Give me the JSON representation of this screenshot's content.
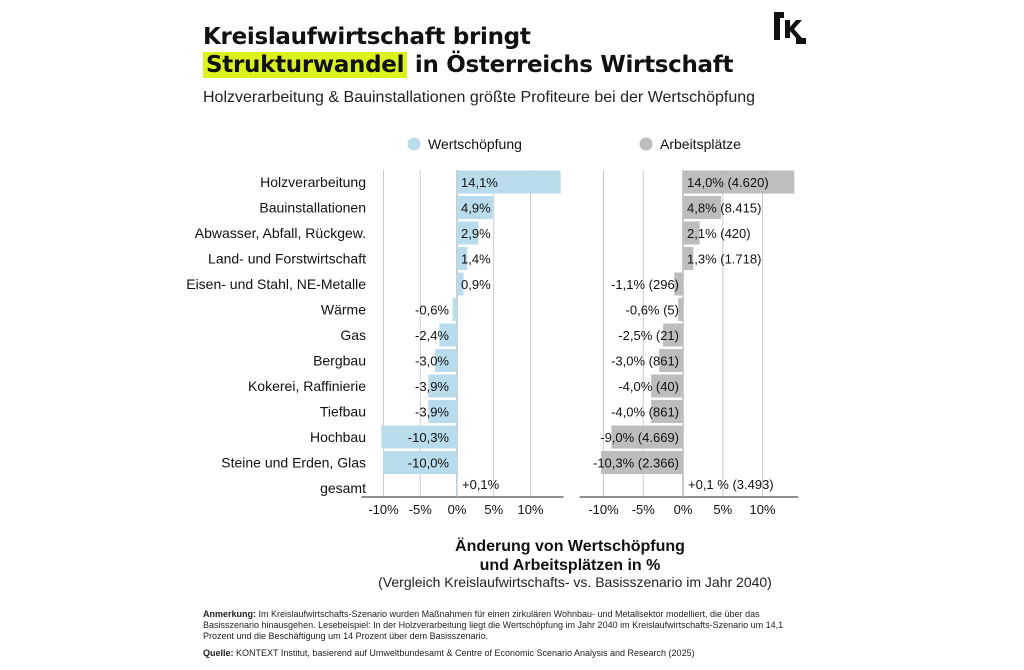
{
  "header": {
    "title_line1": "Kreislaufwirtschaft bringt",
    "title_highlight": "Strukturwandel",
    "title_line2_rest": " in Österreichs Wirtschaft",
    "subtitle": "Holzverarbeitung & Bauinstallationen größte Profiteure bei der Wertschöpfung",
    "logo_icon": "kontext-logo-icon"
  },
  "colors": {
    "wertschoepfung": "#b9dcec",
    "arbeitsplaetze": "#bdbdbd",
    "highlight": "#dcf21e",
    "grid": "#cccccc"
  },
  "chart_data": [
    {
      "type": "bar",
      "orientation": "horizontal",
      "legend": "Wertschöpfung",
      "categories": [
        "Holzverarbeitung",
        "Bauinstallationen",
        "Abwasser, Abfall, Rückgew.",
        "Land- und Forstwirtschaft",
        "Eisen- und Stahl, NE-Metalle",
        "Wärme",
        "Gas",
        "Bergbau",
        "Kokerei, Raffinierie",
        "Tiefbau",
        "Hochbau",
        "Steine und Erden, Glas",
        "gesamt"
      ],
      "values": [
        14.1,
        4.9,
        2.9,
        1.4,
        0.9,
        -0.6,
        -2.4,
        -3.0,
        -3.9,
        -3.9,
        -10.3,
        -10.0,
        0.1
      ],
      "labels": [
        "14,1%",
        "4,9%",
        "2,9%",
        "1,4%",
        "0,9%",
        "-0,6%",
        "-2,4%",
        "-3,0%",
        "-3,9%",
        "-3,9%",
        "-10,3%",
        "-10,0%",
        "+0,1%"
      ],
      "xticks": [
        "-10%",
        "-5%",
        "0%",
        "5%",
        "10%"
      ],
      "xtick_values": [
        -10,
        -5,
        0,
        5,
        10
      ],
      "xlim": [
        -13,
        14.5
      ]
    },
    {
      "type": "bar",
      "orientation": "horizontal",
      "legend": "Arbeitsplätze",
      "categories": [
        "Holzverarbeitung",
        "Bauinstallationen",
        "Abwasser, Abfall, Rückgew.",
        "Land- und Forstwirtschaft",
        "Eisen- und Stahl, NE-Metalle",
        "Wärme",
        "Gas",
        "Bergbau",
        "Kokerei, Raffinierie",
        "Tiefbau",
        "Hochbau",
        "Steine und Erden, Glas",
        "gesamt"
      ],
      "values": [
        14.0,
        4.8,
        2.1,
        1.3,
        -1.1,
        -0.6,
        -2.5,
        -3.0,
        -4.0,
        -4.0,
        -9.0,
        -10.3,
        0.1
      ],
      "labels": [
        "14,0% (4.620)",
        "4,8% (8.415)",
        "2,1% (420)",
        "1,3% (1.718)",
        "-1,1% (296)",
        "-0,6% (5)",
        "-2,5% (21)",
        "-3,0% (861)",
        "-4,0% (40)",
        "-4,0% (861)",
        "-9,0% (4.669)",
        "-10,3% (2.366)",
        "+0,1 % (3.493)"
      ],
      "xticks": [
        "-10%",
        "-5%",
        "0%",
        "5%",
        "10%"
      ],
      "xtick_values": [
        -10,
        -5,
        0,
        5,
        10
      ],
      "xlim": [
        -13,
        14.5
      ]
    }
  ],
  "axis": {
    "title_line1": "Änderung von Wertschöpfung",
    "title_line2": "und Arbeitsplätzen in %",
    "note": "(Vergleich Kreislaufwirtschafts- vs. Basisszenario im Jahr 2040)"
  },
  "footer": {
    "note_label": "Anmerkung:",
    "note_text": " Im Kreislaufwirtschafts-Szenario wurden Maßnahmen für einen zirkulären Wohnbau- und Metallsektor modelliert, die über das Basisszenario hinausgehen. Lesebeispiel: In der Holzverarbeitung liegt die Wertschöpfung im Jahr 2040 im Kreislaufwirtschafts-Szenario um 14,1 Prozent und die Beschäftigung um 14 Prozent über dem Basisszenario.",
    "source_label": "Quelle:",
    "source_text": " KONTEXT Institut, basierend auf Umweltbundesamt & Centre of Economic Scenario Analysis and Research (2025)"
  }
}
